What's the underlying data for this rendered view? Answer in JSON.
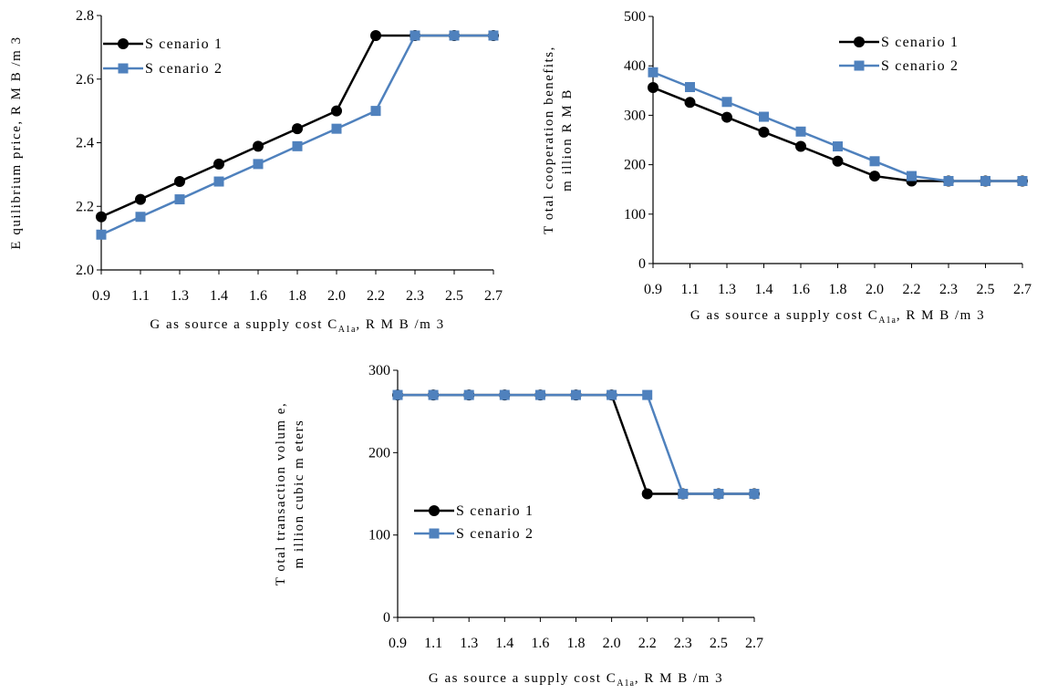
{
  "colors": {
    "scenario1": "#000000",
    "scenario2": "#4f81bd",
    "axis": "#000000"
  },
  "chart_data": [
    {
      "type": "line",
      "categories": [
        "0.9",
        "1.1",
        "1.3",
        "1.4",
        "1.6",
        "1.8",
        "2.0",
        "2.2",
        "2.3",
        "2.5",
        "2.7"
      ],
      "xlabel_main": "G as source a supply cost C",
      "xlabel_sub": "A1a",
      "xlabel_tail": ", R M B /m 3",
      "ylabel_lines": [
        "E quilibrium  price, R M B /m 3"
      ],
      "yticks": [
        "2.0",
        "2.2",
        "2.4",
        "2.6",
        "2.8"
      ],
      "ylim": [
        2.0,
        2.8
      ],
      "legend_position": "top-left",
      "series": [
        {
          "name": "S cenario 1",
          "values": [
            2.167,
            2.222,
            2.278,
            2.333,
            2.389,
            2.444,
            2.5,
            2.737,
            2.737,
            2.737,
            2.737
          ]
        },
        {
          "name": "S cenario 2",
          "values": [
            2.111,
            2.167,
            2.222,
            2.278,
            2.333,
            2.389,
            2.444,
            2.5,
            2.737,
            2.737,
            2.737
          ]
        }
      ]
    },
    {
      "type": "line",
      "categories": [
        "0.9",
        "1.1",
        "1.3",
        "1.4",
        "1.6",
        "1.8",
        "2.0",
        "2.2",
        "2.3",
        "2.5",
        "2.7"
      ],
      "xlabel_main": "G as source a supply cost C",
      "xlabel_sub": "A1a",
      "xlabel_tail": ", R M B /m 3",
      "ylabel_lines": [
        "T otal cooperation benefits,",
        "m illion R M B"
      ],
      "yticks": [
        "0",
        "100",
        "200",
        "300",
        "400",
        "500"
      ],
      "ylim": [
        0,
        500
      ],
      "legend_position": "top-right",
      "series": [
        {
          "name": "S cenario 1",
          "values": [
            356,
            326,
            296,
            266,
            237,
            207,
            177,
            167,
            167,
            167,
            167
          ]
        },
        {
          "name": "S cenario 2",
          "values": [
            387,
            357,
            327,
            297,
            267,
            237,
            207,
            177,
            167,
            167,
            167
          ]
        }
      ]
    },
    {
      "type": "line",
      "categories": [
        "0.9",
        "1.1",
        "1.3",
        "1.4",
        "1.6",
        "1.8",
        "2.0",
        "2.2",
        "2.3",
        "2.5",
        "2.7"
      ],
      "xlabel_main": "G as source a supply cost C",
      "xlabel_sub": "A1a",
      "xlabel_tail": ", R M B /m 3",
      "ylabel_lines": [
        "T otal transaction volum e,",
        "m illion cubic m eters"
      ],
      "yticks": [
        "0",
        "100",
        "200",
        "300"
      ],
      "ylim": [
        0,
        300
      ],
      "legend_position": "center",
      "series": [
        {
          "name": "S cenario 1",
          "values": [
            270,
            270,
            270,
            270,
            270,
            270,
            270,
            150,
            150,
            150,
            150
          ]
        },
        {
          "name": "S cenario 2",
          "values": [
            270,
            270,
            270,
            270,
            270,
            270,
            270,
            270,
            150,
            150,
            150
          ]
        }
      ]
    }
  ]
}
